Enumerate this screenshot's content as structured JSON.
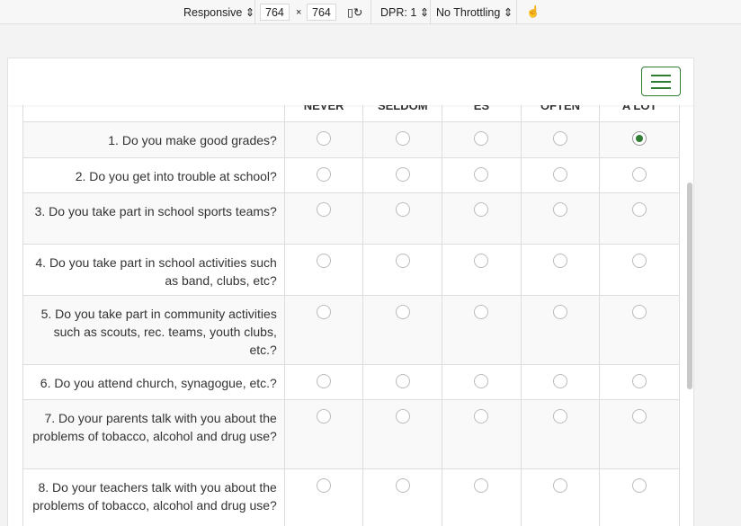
{
  "toolbar": {
    "device": "Responsive ⇕",
    "width": "764",
    "times": "×",
    "height": "764",
    "dpr": "DPR: 1 ⇕",
    "throttling": "No Throttling ⇕"
  },
  "table": {
    "columns": [
      "NEVER",
      "SELDOM",
      "ES",
      "OFTEN",
      "A LOT"
    ],
    "questions": [
      {
        "text": "1. Do you make good grades?",
        "selected": 4
      },
      {
        "text": "2. Do you get into trouble at school?",
        "selected": null
      },
      {
        "text": "3. Do you take part in school sports teams?",
        "selected": null
      },
      {
        "text": "4. Do you take part in school activities such as band, clubs, etc?",
        "selected": null
      },
      {
        "text": "5. Do you take part in community activities such as scouts, rec. teams, youth clubs, etc.?",
        "selected": null
      },
      {
        "text": "6. Do you attend church, synagogue, etc.?",
        "selected": null
      },
      {
        "text": "7. Do your parents talk with you about the problems of tobacco, alcohol and drug use?",
        "selected": null
      },
      {
        "text": "8. Do your teachers talk with you about the problems of tobacco, alcohol and drug use?",
        "selected": null
      }
    ]
  },
  "accent": "#2e7d32"
}
